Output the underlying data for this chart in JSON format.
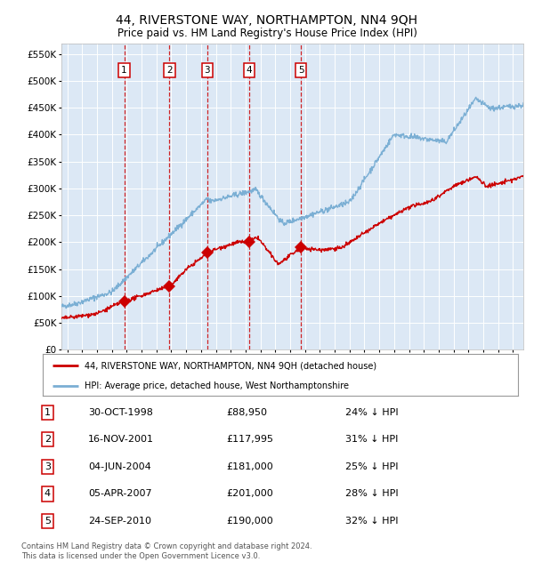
{
  "title": "44, RIVERSTONE WAY, NORTHAMPTON, NN4 9QH",
  "subtitle": "Price paid vs. HM Land Registry's House Price Index (HPI)",
  "title_fontsize": 10,
  "subtitle_fontsize": 8.5,
  "background_color": "#ffffff",
  "plot_bg_color": "#dce8f5",
  "grid_color": "#ffffff",
  "legend_line1": "44, RIVERSTONE WAY, NORTHAMPTON, NN4 9QH (detached house)",
  "legend_line2": "HPI: Average price, detached house, West Northamptonshire",
  "footer1": "Contains HM Land Registry data © Crown copyright and database right 2024.",
  "footer2": "This data is licensed under the Open Government Licence v3.0.",
  "sale_points": [
    {
      "label": "1",
      "year": 1998.83,
      "price": 88950
    },
    {
      "label": "2",
      "year": 2001.88,
      "price": 117995
    },
    {
      "label": "3",
      "year": 2004.42,
      "price": 181000
    },
    {
      "label": "4",
      "year": 2007.25,
      "price": 201000
    },
    {
      "label": "5",
      "year": 2010.73,
      "price": 190000
    }
  ],
  "red_line_color": "#cc0000",
  "blue_line_color": "#7bafd4",
  "sale_marker_color": "#cc0000",
  "vline_color": "#cc0000",
  "table_rows": [
    [
      "1",
      "30-OCT-1998",
      "£88,950",
      "24% ↓ HPI"
    ],
    [
      "2",
      "16-NOV-2001",
      "£117,995",
      "31% ↓ HPI"
    ],
    [
      "3",
      "04-JUN-2004",
      "£181,000",
      "25% ↓ HPI"
    ],
    [
      "4",
      "05-APR-2007",
      "£201,000",
      "28% ↓ HPI"
    ],
    [
      "5",
      "24-SEP-2010",
      "£190,000",
      "32% ↓ HPI"
    ]
  ],
  "ylim": [
    0,
    570000
  ],
  "xlim_start": 1994.6,
  "xlim_end": 2025.7
}
